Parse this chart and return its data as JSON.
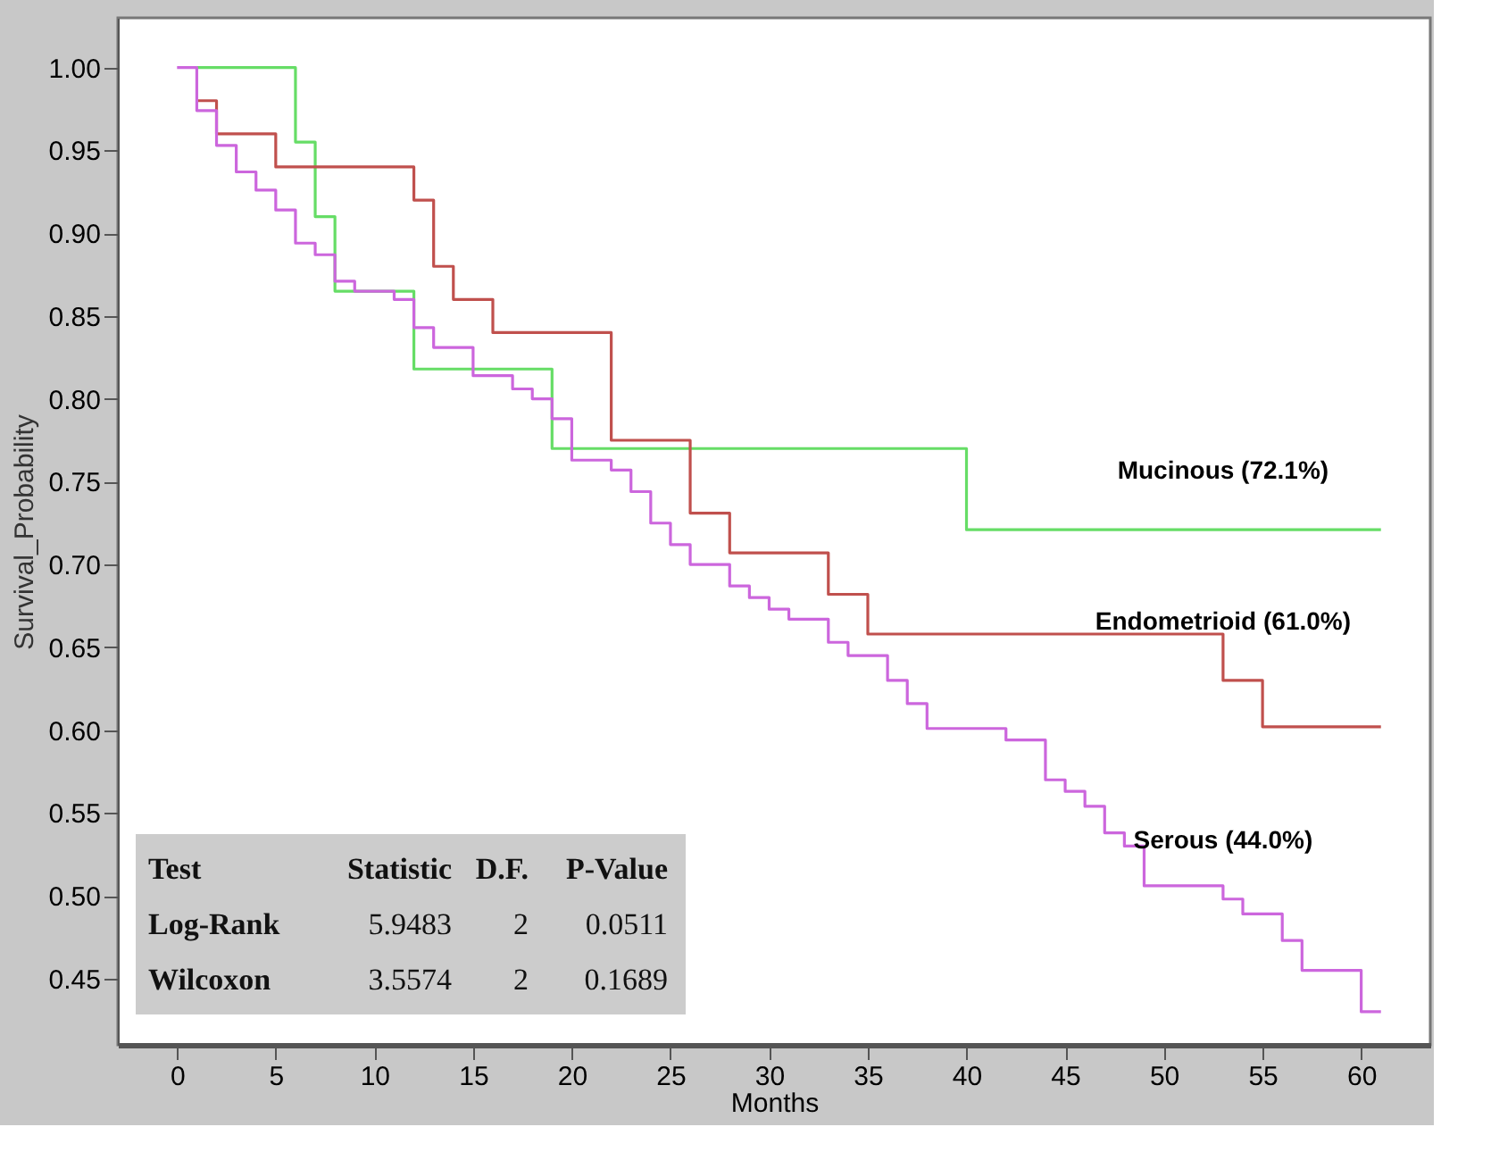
{
  "chart_data": {
    "type": "step",
    "xlabel": "Months",
    "ylabel": "Survival_Probability",
    "xlim": [
      -3,
      63.5
    ],
    "ylim": [
      0.41,
      1.03
    ],
    "xticks": [
      0,
      5,
      10,
      15,
      20,
      25,
      30,
      35,
      40,
      45,
      50,
      55,
      60
    ],
    "yticks": [
      0.45,
      {
        "value": 0.5,
        "label": "0.50"
      },
      0.55,
      {
        "value": 0.6,
        "label": "0.60"
      },
      0.65,
      {
        "value": 0.7,
        "label": "0.70"
      },
      0.75,
      {
        "value": 0.8,
        "label": "0.80"
      },
      0.85,
      {
        "value": 0.9,
        "label": "0.90"
      },
      0.95,
      {
        "value": 1.0,
        "label": "1.00"
      }
    ],
    "grid": false,
    "legend": false,
    "line_style": "solid",
    "marker": "none",
    "series": [
      {
        "name": "Mucinous  (72.1%)",
        "color": "#66dd66",
        "x": [
          1,
          6,
          7,
          8,
          12,
          19,
          40,
          61
        ],
        "values": [
          1.0,
          0.955,
          0.91,
          0.865,
          0.818,
          0.77,
          0.721,
          0.721
        ]
      },
      {
        "name": "Endometrioid (61.0%)",
        "color": "#c0504d",
        "x": [
          1,
          2,
          5,
          12,
          13,
          14,
          16,
          22,
          26,
          28,
          33,
          35,
          53,
          55,
          61
        ],
        "values": [
          0.98,
          0.96,
          0.94,
          0.92,
          0.88,
          0.86,
          0.84,
          0.775,
          0.731,
          0.707,
          0.682,
          0.658,
          0.63,
          0.602,
          0.602
        ]
      },
      {
        "name": "Serous (44.0%)",
        "color": "#cc66dd",
        "x": [
          0,
          1,
          2,
          3,
          4,
          5,
          6,
          7,
          8,
          9,
          11,
          12,
          13,
          15,
          17,
          18,
          19,
          20,
          22,
          23,
          24,
          25,
          26,
          28,
          29,
          30,
          31,
          33,
          34,
          36,
          37,
          38,
          42,
          44,
          45,
          46,
          47,
          48,
          49,
          53,
          54,
          56,
          57,
          60,
          61
        ],
        "values": [
          1.0,
          0.974,
          0.953,
          0.937,
          0.926,
          0.914,
          0.894,
          0.887,
          0.871,
          0.865,
          0.86,
          0.843,
          0.831,
          0.814,
          0.806,
          0.8,
          0.788,
          0.763,
          0.757,
          0.744,
          0.725,
          0.712,
          0.7,
          0.687,
          0.68,
          0.673,
          0.667,
          0.653,
          0.645,
          0.63,
          0.616,
          0.601,
          0.594,
          0.57,
          0.563,
          0.554,
          0.538,
          0.53,
          0.506,
          0.498,
          0.489,
          0.473,
          0.455,
          0.43,
          0.43
        ]
      }
    ],
    "annotations": [
      "Test Statistic D.F. P-Value",
      "Log-Rank 5.9483 2 0.0511",
      "Wilcoxon 3.5574 2 0.1689"
    ]
  }
}
